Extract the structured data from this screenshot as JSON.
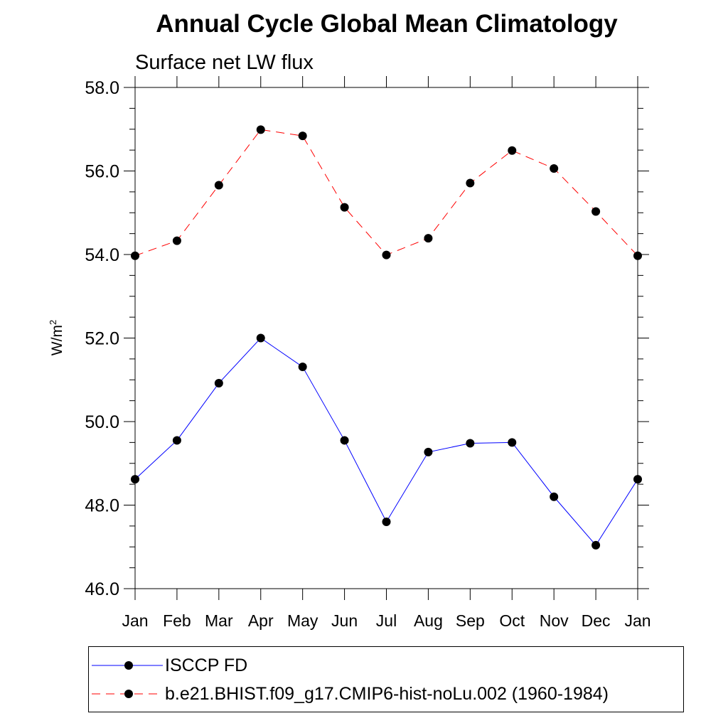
{
  "chart_data": {
    "type": "line",
    "title": "Annual Cycle Global Mean Climatology",
    "subtitle": "Surface net LW flux",
    "ylabel_base": "W/m",
    "ylabel_sup": "2",
    "xlabel": "",
    "categories": [
      "Jan",
      "Feb",
      "Mar",
      "Apr",
      "May",
      "Jun",
      "Jul",
      "Aug",
      "Sep",
      "Oct",
      "Nov",
      "Dec",
      "Jan"
    ],
    "ylim": [
      46.0,
      58.0
    ],
    "yticks": [
      46.0,
      48.0,
      50.0,
      52.0,
      54.0,
      56.0,
      58.0
    ],
    "ytick_labels": [
      "46.0",
      "48.0",
      "50.0",
      "52.0",
      "54.0",
      "56.0",
      "58.0"
    ],
    "legend_position": "bottom",
    "series": [
      {
        "name": "ISCCP FD",
        "color": "#0000ff",
        "dash": "solid",
        "values": [
          48.62,
          49.55,
          50.92,
          52.0,
          51.31,
          49.55,
          47.6,
          49.27,
          49.48,
          49.5,
          48.2,
          47.04,
          48.62
        ]
      },
      {
        "name": "b.e21.BHIST.f09_g17.CMIP6-hist-noLu.002 (1960-1984)",
        "color": "#ff0000",
        "dash": "dashed",
        "values": [
          53.97,
          54.33,
          55.66,
          56.99,
          56.84,
          55.13,
          53.99,
          54.39,
          55.71,
          56.49,
          56.06,
          55.03,
          53.97
        ]
      }
    ]
  }
}
